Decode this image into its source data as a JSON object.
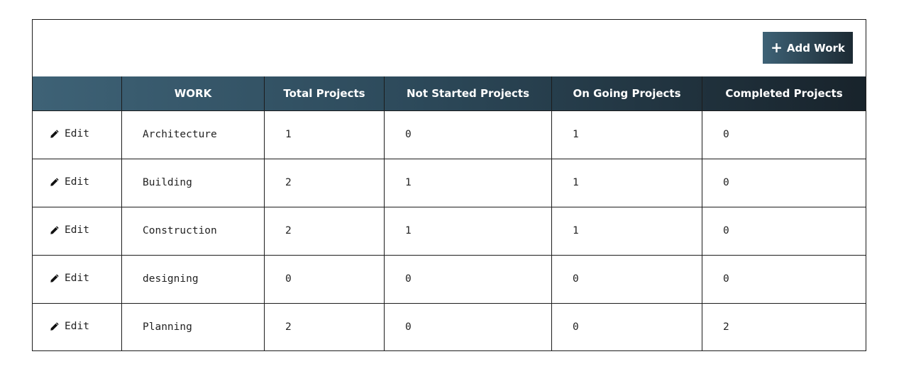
{
  "toolbar": {
    "add_work_label": "Add Work",
    "add_icon": "plus-icon"
  },
  "table": {
    "columns": [
      "",
      "WORK",
      "Total Projects",
      "Not Started Projects",
      "On Going Projects",
      "Completed Projects"
    ],
    "edit_label": "Edit",
    "edit_icon": "pencil-icon",
    "rows": [
      {
        "work": "Architecture",
        "total": "1",
        "not_started": "0",
        "ongoing": "1",
        "completed": "0"
      },
      {
        "work": "Building",
        "total": "2",
        "not_started": "1",
        "ongoing": "1",
        "completed": "0"
      },
      {
        "work": "Construction",
        "total": "2",
        "not_started": "1",
        "ongoing": "1",
        "completed": "0"
      },
      {
        "work": "designing",
        "total": "0",
        "not_started": "0",
        "ongoing": "0",
        "completed": "0"
      },
      {
        "work": "Planning",
        "total": "2",
        "not_started": "0",
        "ongoing": "0",
        "completed": "2"
      }
    ]
  },
  "colors": {
    "header_gradient_start": "#3e6276",
    "header_gradient_end": "#18232b",
    "border": "#1c1c1c"
  }
}
